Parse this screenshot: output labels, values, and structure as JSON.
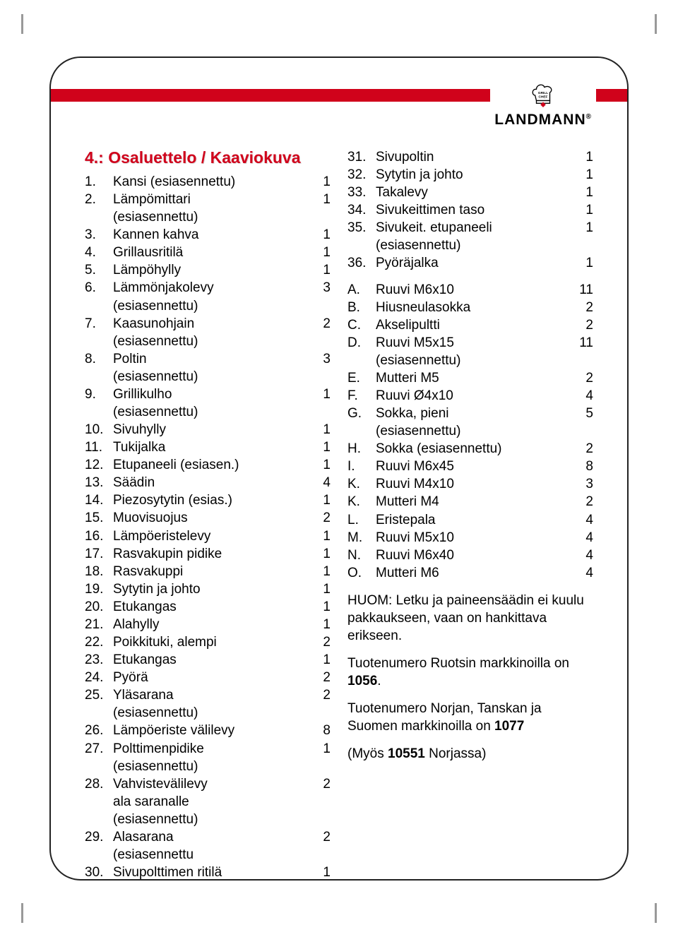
{
  "brand": {
    "name": "LANDMANN",
    "badge_top": "GRILL",
    "badge_bottom": "CHEF"
  },
  "section_title": "4.:   Osaluettelo / Kaaviokuva",
  "left_items": [
    {
      "n": "1.",
      "label": "Kansi (esiasennettu)",
      "qty": "1"
    },
    {
      "n": "2.",
      "label": "Lämpömittari",
      "qty": "1"
    },
    {
      "n": "",
      "label": "(esiasennettu)",
      "qty": ""
    },
    {
      "n": "3.",
      "label": "Kannen kahva",
      "qty": "1"
    },
    {
      "n": "4.",
      "label": "Grillausritilä",
      "qty": "1"
    },
    {
      "n": "5.",
      "label": "Lämpöhylly",
      "qty": "1"
    },
    {
      "n": "6.",
      "label": "Lämmönjakolevy",
      "qty": "3"
    },
    {
      "n": "",
      "label": "(esiasennettu)",
      "qty": ""
    },
    {
      "n": "7.",
      "label": "Kaasunohjain",
      "qty": "2"
    },
    {
      "n": "",
      "label": "(esiasennettu)",
      "qty": ""
    },
    {
      "n": "8.",
      "label": "Poltin",
      "qty": "3"
    },
    {
      "n": "",
      "label": "(esiasennettu)",
      "qty": ""
    },
    {
      "n": "9.",
      "label": "Grillikulho",
      "qty": "1"
    },
    {
      "n": "",
      "label": "(esiasennettu)",
      "qty": ""
    },
    {
      "n": "10.",
      "label": "Sivuhylly",
      "qty": "1"
    },
    {
      "n": "11.",
      "label": "Tukijalka",
      "qty": "1"
    },
    {
      "n": "12.",
      "label": "Etupaneeli (esiasen.)",
      "qty": "1"
    },
    {
      "n": "13.",
      "label": "Säädin",
      "qty": "4"
    },
    {
      "n": "14.",
      "label": "Piezosytytin (esias.)",
      "qty": "1"
    },
    {
      "n": "15.",
      "label": "Muovisuojus",
      "qty": "2"
    },
    {
      "n": "16.",
      "label": "Lämpöeristelevy",
      "qty": "1"
    },
    {
      "n": "17.",
      "label": "Rasvakupin pidike",
      "qty": "1"
    },
    {
      "n": "18.",
      "label": "Rasvakuppi",
      "qty": "1"
    },
    {
      "n": "19.",
      "label": "Sytytin ja johto",
      "qty": "1"
    },
    {
      "n": "20.",
      "label": "Etukangas",
      "qty": "1"
    },
    {
      "n": "21.",
      "label": "Alahylly",
      "qty": "1"
    },
    {
      "n": "22.",
      "label": "Poikkituki, alempi",
      "qty": "2"
    },
    {
      "n": "23.",
      "label": "Etukangas",
      "qty": "1"
    },
    {
      "n": "24.",
      "label": "Pyörä",
      "qty": "2"
    },
    {
      "n": "25.",
      "label": "Yläsarana",
      "qty": "2"
    },
    {
      "n": "",
      "label": "(esiasennettu)",
      "qty": ""
    },
    {
      "n": "26.",
      "label": "Lämpöeriste välilevy",
      "qty": "8"
    },
    {
      "n": "27.",
      "label": "Polttimenpidike",
      "qty": "1"
    },
    {
      "n": "",
      "label": "(esiasennettu)",
      "qty": ""
    },
    {
      "n": "28.",
      "label": "Vahvistevälilevy",
      "qty": "2"
    },
    {
      "n": "",
      "label": "ala saranalle",
      "qty": ""
    },
    {
      "n": "",
      "label": "(esiasennettu)",
      "qty": ""
    },
    {
      "n": "29.",
      "label": "Alasarana",
      "qty": "2"
    },
    {
      "n": "",
      "label": "(esiasennettu",
      "qty": ""
    },
    {
      "n": "30.",
      "label": "Sivupolttimen ritilä",
      "qty": "1"
    }
  ],
  "right_items": [
    {
      "n": "31.",
      "label": "Sivupoltin",
      "qty": "1"
    },
    {
      "n": "32.",
      "label": "Sytytin ja johto",
      "qty": "1"
    },
    {
      "n": "33.",
      "label": "Takalevy",
      "qty": "1"
    },
    {
      "n": "34.",
      "label": "Sivukeittimen taso",
      "qty": "1"
    },
    {
      "n": "35.",
      "label": "Sivukeit. etupaneeli",
      "qty": "1"
    },
    {
      "n": "",
      "label": "(esiasennettu)",
      "qty": ""
    },
    {
      "n": "36.",
      "label": "Pyöräjalka",
      "qty": "1"
    }
  ],
  "hardware_items": [
    {
      "n": "A.",
      "label": "Ruuvi M6x10",
      "qty": "11"
    },
    {
      "n": "B.",
      "label": "Hiusneulasokka",
      "qty": "2"
    },
    {
      "n": "C.",
      "label": "Akselipultti",
      "qty": "2"
    },
    {
      "n": "D.",
      "label": "Ruuvi M5x15",
      "qty": "11"
    },
    {
      "n": "",
      "label": "(esiasennettu)",
      "qty": ""
    },
    {
      "n": "E.",
      "label": "Mutteri M5",
      "qty": "2"
    },
    {
      "n": "F.",
      "label": "Ruuvi Ø4x10",
      "qty": "4"
    },
    {
      "n": "G.",
      "label": "Sokka, pieni",
      "qty": "5"
    },
    {
      "n": "",
      "label": "(esiasennettu)",
      "qty": ""
    },
    {
      "n": "H.",
      "label": "Sokka (esiasennettu)",
      "qty": "2"
    },
    {
      "n": "I.",
      "label": "Ruuvi M6x45",
      "qty": "8"
    },
    {
      "n": "K.",
      "label": "Ruuvi M4x10",
      "qty": "3"
    },
    {
      "n": "K.",
      "label": "Mutteri M4",
      "qty": "2"
    },
    {
      "n": "L.",
      "label": "Eristepala",
      "qty": "4"
    },
    {
      "n": "M.",
      "label": "Ruuvi M5x10",
      "qty": "4"
    },
    {
      "n": "N.",
      "label": "Ruuvi M6x40",
      "qty": "4"
    },
    {
      "n": "O.",
      "label": "Mutteri M6",
      "qty": "4"
    }
  ],
  "notes": {
    "p1_a": " HUOM: Letku ja paineensäädin ei kuulu pakkaukseen, vaan on hankittava erikseen.",
    "p2_a": "Tuotenumero Ruotsin markkinoilla on ",
    "p2_b": "1056",
    "p2_c": ".",
    "p3_a": "Tuotenumero Norjan, Tanskan ja Suomen markkinoilla on ",
    "p3_b": "1077",
    "p4_a": "(Myös ",
    "p4_b": "10551",
    "p4_c": " Norjassa)"
  },
  "colors": {
    "accent": "#d0021b",
    "text": "#000000",
    "frame": "#222222"
  }
}
